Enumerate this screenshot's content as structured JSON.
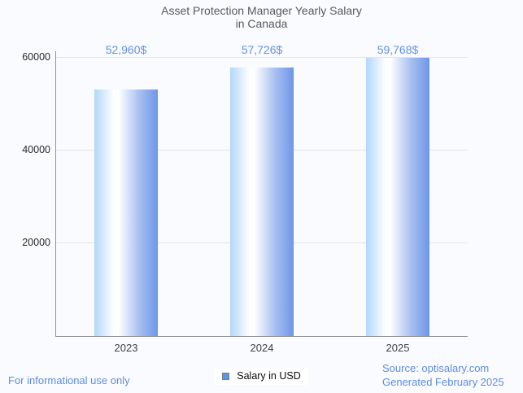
{
  "title": {
    "line1": "Asset Protection Manager Yearly Salary",
    "line2": "in Canada"
  },
  "chart_data": {
    "type": "bar",
    "title": "Asset Protection Manager Yearly Salary in Canada",
    "categories": [
      "2023",
      "2024",
      "2025"
    ],
    "series": [
      {
        "name": "Salary in USD",
        "values": [
          52960,
          57726,
          59768
        ]
      }
    ],
    "value_labels": [
      "52,960$",
      "57,726$",
      "59,768$"
    ],
    "ylabel": "",
    "xlabel": "",
    "ylim": [
      0,
      60000
    ],
    "yticks": [
      20000,
      40000,
      60000
    ],
    "ytick_labels": [
      "20000",
      "40000",
      "60000"
    ],
    "grid": true,
    "legend_position": "bottom",
    "bar_gradient": [
      "#b2d7fb",
      "#ffffff",
      "#6e96e8"
    ]
  },
  "legend": {
    "label": "Salary in USD",
    "swatch_color": "#5c96e8"
  },
  "footer": {
    "disclaimer": "For informational use only",
    "source": "Source: optisalary.com",
    "generated": "Generated February 2025"
  },
  "colors": {
    "background": "#fafbfe",
    "title_text": "#595a5c",
    "accent_blue": "#6191e6",
    "gridline": "#e2e4e7",
    "axis_line": "#8f9296",
    "tick_text": "#26292d"
  }
}
